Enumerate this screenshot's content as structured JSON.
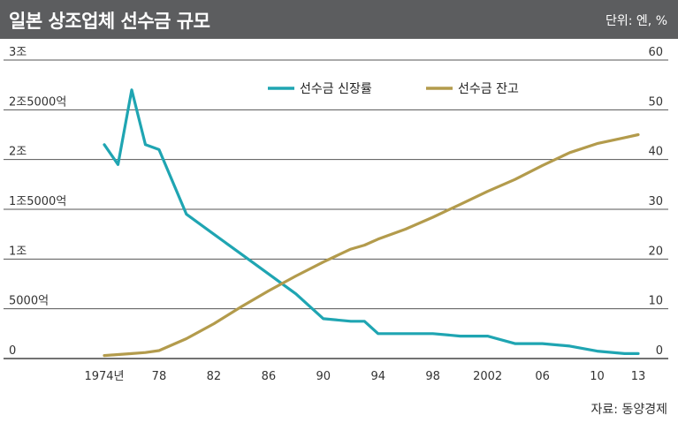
{
  "header": {
    "title": "일본 상조업체 선수금 규모",
    "unit": "단위: 엔, %"
  },
  "source": "자료: 동양경제",
  "chart_data": {
    "type": "line",
    "x": [
      1974,
      1975,
      1976,
      1977,
      1978,
      1980,
      1982,
      1984,
      1986,
      1988,
      1990,
      1992,
      1993,
      1994,
      1996,
      1998,
      2000,
      2002,
      2004,
      2006,
      2008,
      2010,
      2012,
      2013
    ],
    "x_tick_labels": [
      "1974년",
      "78",
      "82",
      "86",
      "90",
      "94",
      "98",
      "2002",
      "06",
      "10",
      "13"
    ],
    "x_tick_values": [
      1974,
      1978,
      1982,
      1986,
      1990,
      1994,
      1998,
      2002,
      2006,
      2010,
      2013
    ],
    "y_left_tick_labels": [
      "0",
      "5000억",
      "1조",
      "1조5000억",
      "2조",
      "2조5000억",
      "3조"
    ],
    "y_left_range": [
      0,
      3
    ],
    "y_right_tick_labels": [
      "0",
      "10",
      "20",
      "30",
      "40",
      "50",
      "60"
    ],
    "y_right_range": [
      0,
      60
    ],
    "grid": true,
    "legend_position": "top-center",
    "series": [
      {
        "name": "선수금 신장률",
        "axis": "right",
        "color": "#1fa5b2",
        "values": [
          43,
          39,
          54,
          43,
          42,
          29,
          25,
          21,
          17,
          13,
          8,
          7.5,
          7.5,
          5,
          5,
          5,
          4.5,
          4.5,
          3,
          3,
          2.5,
          1.5,
          1,
          1
        ]
      },
      {
        "name": "선수금 잔고",
        "axis": "left",
        "color": "#b39b4c",
        "values": [
          0.03,
          0.04,
          0.05,
          0.06,
          0.08,
          0.2,
          0.35,
          0.52,
          0.68,
          0.83,
          0.97,
          1.1,
          1.14,
          1.2,
          1.3,
          1.42,
          1.55,
          1.68,
          1.8,
          1.94,
          2.07,
          2.16,
          2.22,
          2.25
        ]
      }
    ]
  }
}
